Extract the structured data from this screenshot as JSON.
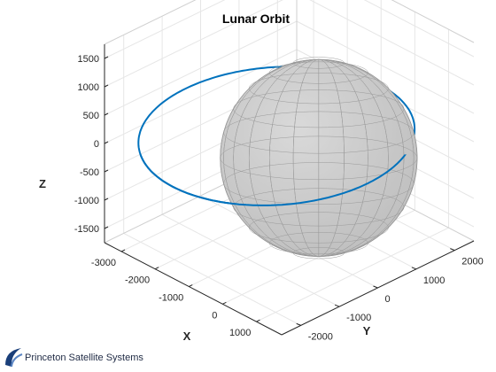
{
  "chart_data": {
    "type": "3d-line-surface",
    "title": "Lunar Orbit",
    "xlabel": "X",
    "ylabel": "Y",
    "zlabel": "Z",
    "x_ticks": [
      "-3000",
      "-2000",
      "-1000",
      "0",
      "1000"
    ],
    "y_ticks": [
      "-2000",
      "-1000",
      "0",
      "1000",
      "2000"
    ],
    "z_ticks": [
      "1500",
      "1000",
      "500",
      "0",
      "-500",
      "-1000",
      "-1500"
    ],
    "xlim": [
      -3500,
      1750
    ],
    "ylim": [
      -2500,
      2500
    ],
    "zlim": [
      -1750,
      1750
    ],
    "grid": true,
    "series": [
      {
        "kind": "orbit",
        "color": "#0072BD",
        "center": [
          -1250,
          0,
          0
        ],
        "radius": 2700
      },
      {
        "kind": "sphere",
        "color": "#BFBFBF",
        "center": [
          0,
          0,
          0
        ],
        "radius": 1737
      }
    ]
  },
  "footer": {
    "text": "Princeton Satellite Systems"
  }
}
